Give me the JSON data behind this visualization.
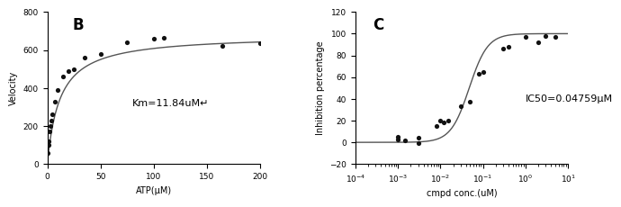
{
  "panel_B": {
    "label": "B",
    "scatter_x": [
      0.5,
      1,
      1.5,
      2,
      3,
      4,
      5,
      7,
      10,
      15,
      20,
      25,
      35,
      50,
      75,
      100,
      110,
      165,
      200
    ],
    "scatter_y": [
      60,
      100,
      120,
      170,
      200,
      230,
      260,
      330,
      390,
      460,
      490,
      500,
      560,
      580,
      640,
      660,
      665,
      620,
      635
    ],
    "Vmax": 680,
    "Km": 11.84,
    "xlabel": "ATP(μM)",
    "ylabel": "Velocity",
    "xlim": [
      0,
      200
    ],
    "ylim": [
      0,
      800
    ],
    "yticks": [
      0,
      200,
      400,
      600,
      800
    ],
    "xticks": [
      0,
      50,
      100,
      150,
      200
    ],
    "annotation": "Km=11.84uM↵",
    "ann_x": 80,
    "ann_y": 320
  },
  "panel_C": {
    "label": "C",
    "scatter_x": [
      0.001,
      0.001,
      0.0015,
      0.003,
      0.003,
      0.008,
      0.01,
      0.012,
      0.015,
      0.03,
      0.05,
      0.08,
      0.1,
      0.3,
      0.4,
      1.0,
      2.0,
      3.0,
      5.0
    ],
    "scatter_y": [
      3,
      5,
      2,
      -1,
      4,
      15,
      20,
      18,
      20,
      33,
      37,
      63,
      65,
      86,
      88,
      97,
      92,
      98,
      97
    ],
    "IC50": 0.04759,
    "Hill": 2.0,
    "xlabel": "cmpd conc.(uM)",
    "ylabel": "Inhibition percentage",
    "xlim_log": [
      -4,
      1
    ],
    "ylim": [
      -20,
      120
    ],
    "yticks": [
      -20,
      0,
      20,
      40,
      60,
      80,
      100,
      120
    ],
    "annotation": "IC50=0.04759μM",
    "ann_x_log": 0.0,
    "ann_y": 40
  },
  "line_color": "#555555",
  "dot_color": "#111111"
}
